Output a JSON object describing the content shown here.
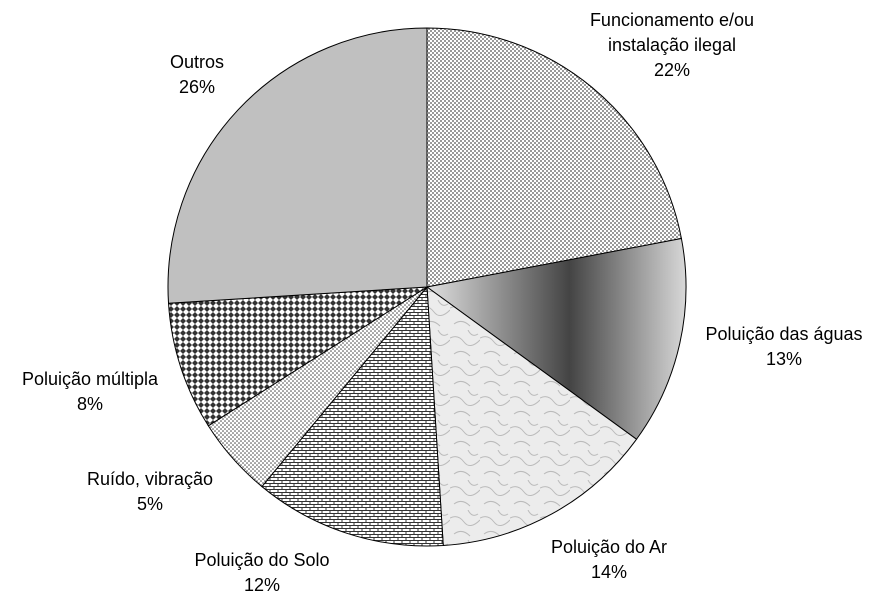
{
  "chart_data": {
    "type": "pie",
    "categories": [
      "Funcionamento e/ou instalação ilegal",
      "Poluição das águas",
      "Poluição do Ar",
      "Poluição do Solo",
      "Ruído, vibração",
      "Poluição múltipla",
      "Outros"
    ],
    "values": [
      22,
      13,
      14,
      12,
      5,
      8,
      26
    ],
    "value_labels": [
      "22%",
      "13%",
      "14%",
      "12%",
      "5%",
      "8%",
      "26%"
    ]
  }
}
